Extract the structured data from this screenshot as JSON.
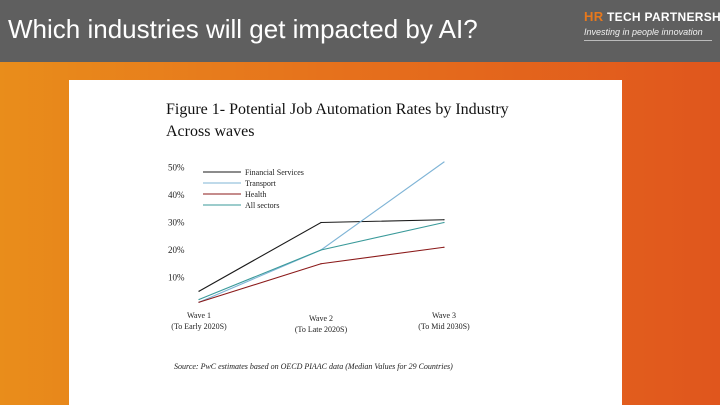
{
  "header": {
    "title": "Which industries will get impacted by AI?",
    "logo_brand": "HR",
    "logo_name": "TECH PARTNERSHIP",
    "logo_tagline": "Investing in people innovation"
  },
  "chart_data": {
    "type": "line",
    "title": "Figure 1- Potential Job Automation Rates by Industry Across waves",
    "title_lines": [
      "Figure 1- Potential Job Automation Rates by Industry",
      "Across waves"
    ],
    "categories": [
      "Wave 1",
      "Wave 2",
      "Wave 3"
    ],
    "category_sublabels": [
      "(To Early 2020S)",
      "(To Late 2020S)",
      "(To Mid 2030S)"
    ],
    "series": [
      {
        "name": "Financial Services",
        "color": "#1a1a1a",
        "values": [
          5,
          30,
          31
        ]
      },
      {
        "name": "Transport",
        "color": "#7fb4d6",
        "values": [
          1,
          20,
          52
        ]
      },
      {
        "name": "Health",
        "color": "#8b1a1a",
        "values": [
          1,
          15,
          21
        ]
      },
      {
        "name": "All sectors",
        "color": "#3a9a9a",
        "values": [
          2,
          20,
          30
        ]
      }
    ],
    "y_ticks": [
      "10%",
      "20%",
      "30%",
      "40%",
      "50%"
    ],
    "ylim": [
      0,
      55
    ],
    "source": "Source: PwC estimates based on OECD PIAAC data (Median Values for 29 Countries)"
  }
}
